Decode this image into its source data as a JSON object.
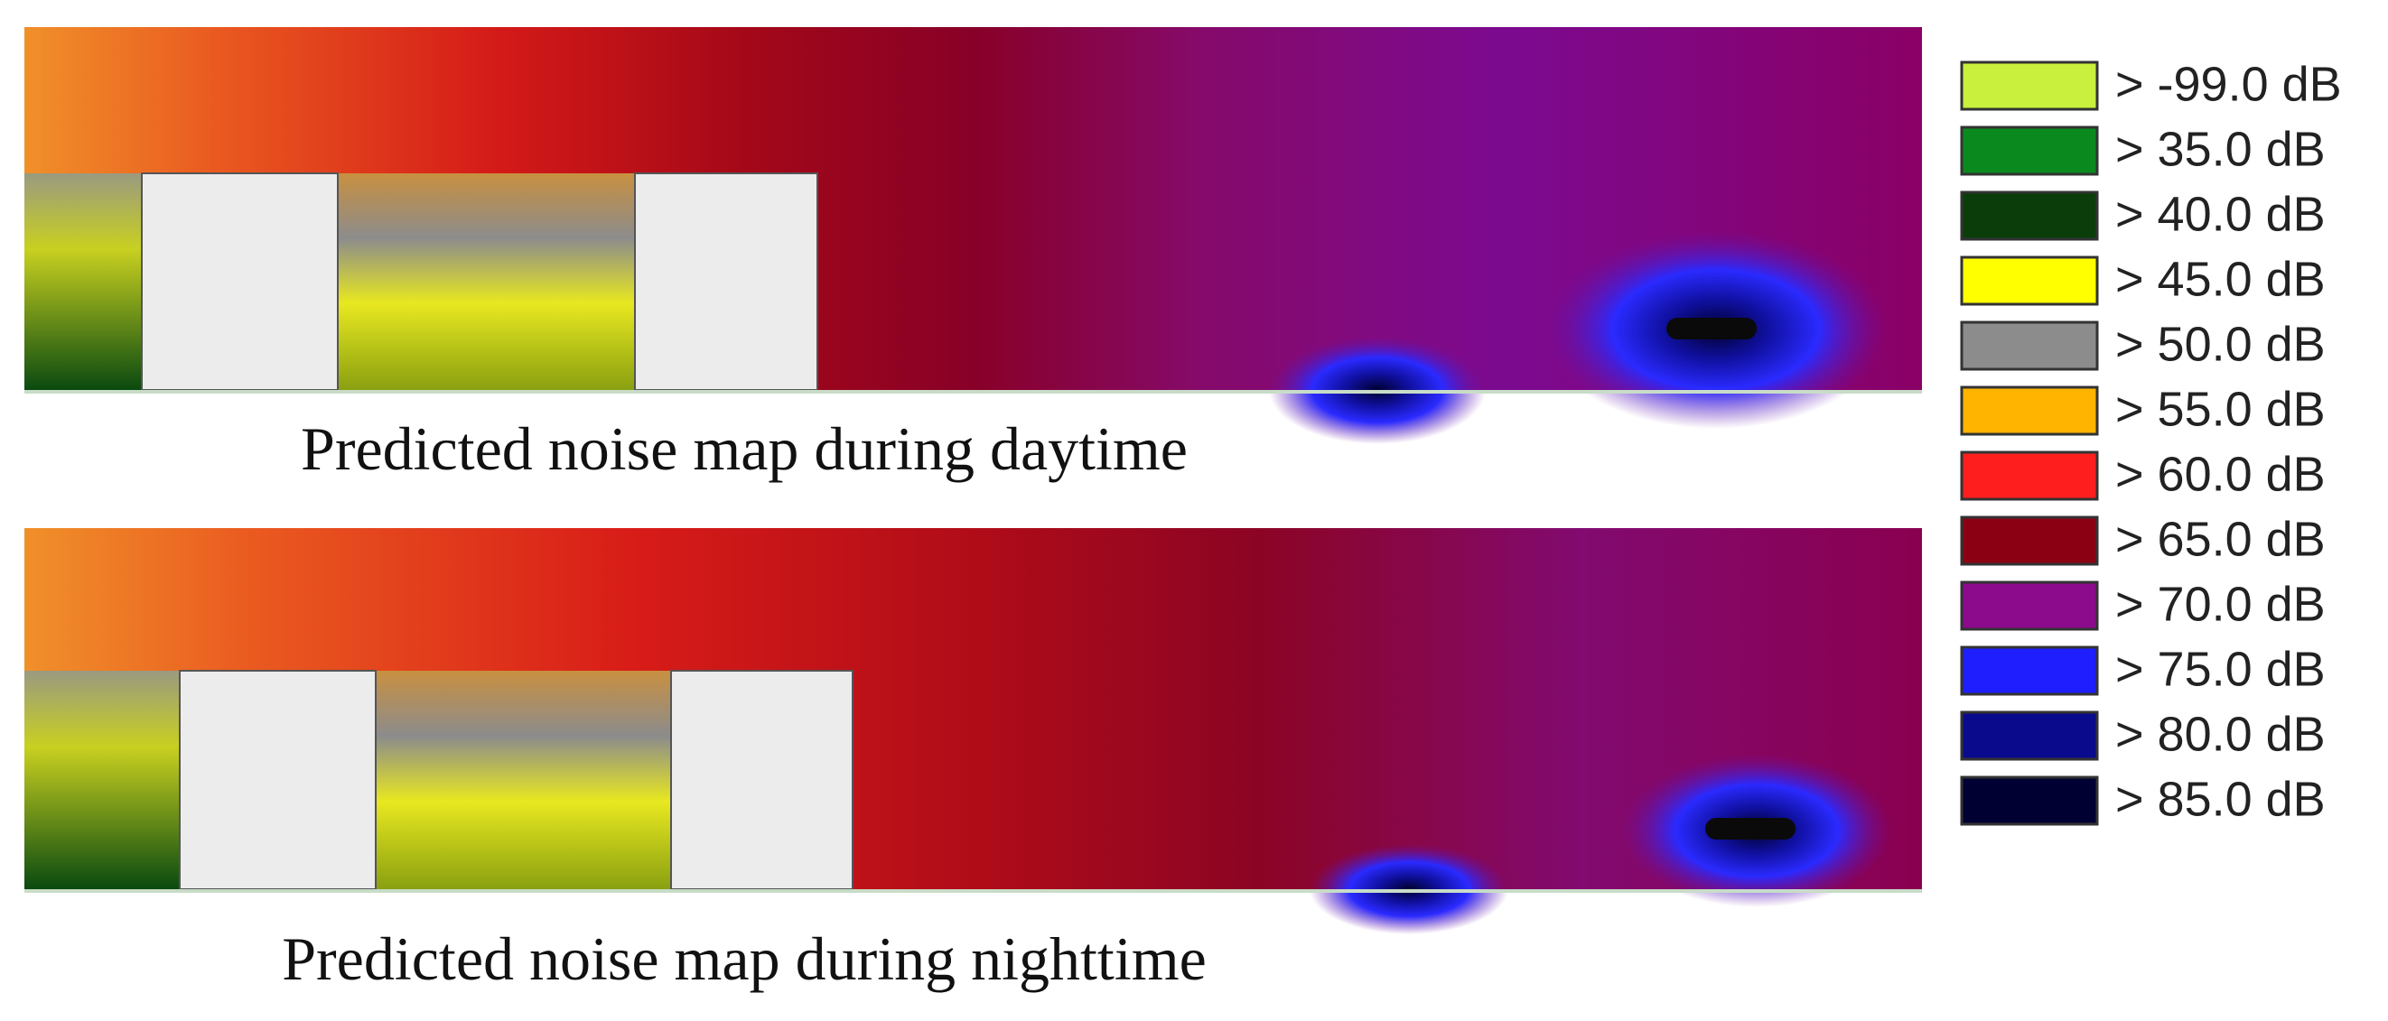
{
  "panels": [
    {
      "caption": "Predicted noise map during daytime"
    },
    {
      "caption": "Predicted noise map during nighttime"
    }
  ],
  "legend": {
    "entries": [
      {
        "label": "> -99.0 dB",
        "color": "#c8f03c"
      },
      {
        "label": "> 35.0 dB",
        "color": "#0a8a1e"
      },
      {
        "label": "> 40.0 dB",
        "color": "#0a3d0a"
      },
      {
        "label": "> 45.0 dB",
        "color": "#ffff00"
      },
      {
        "label": "> 50.0 dB",
        "color": "#8c8c8c"
      },
      {
        "label": "> 55.0 dB",
        "color": "#ffb400"
      },
      {
        "label": "> 60.0 dB",
        "color": "#ff1e1e"
      },
      {
        "label": "> 65.0 dB",
        "color": "#8c0014"
      },
      {
        "label": "> 70.0 dB",
        "color": "#8c0a8c"
      },
      {
        "label": "> 75.0 dB",
        "color": "#1e1eff"
      },
      {
        "label": "> 80.0 dB",
        "color": "#0a0a8c"
      },
      {
        "label": "> 85.0 dB",
        "color": "#000032"
      }
    ]
  }
}
